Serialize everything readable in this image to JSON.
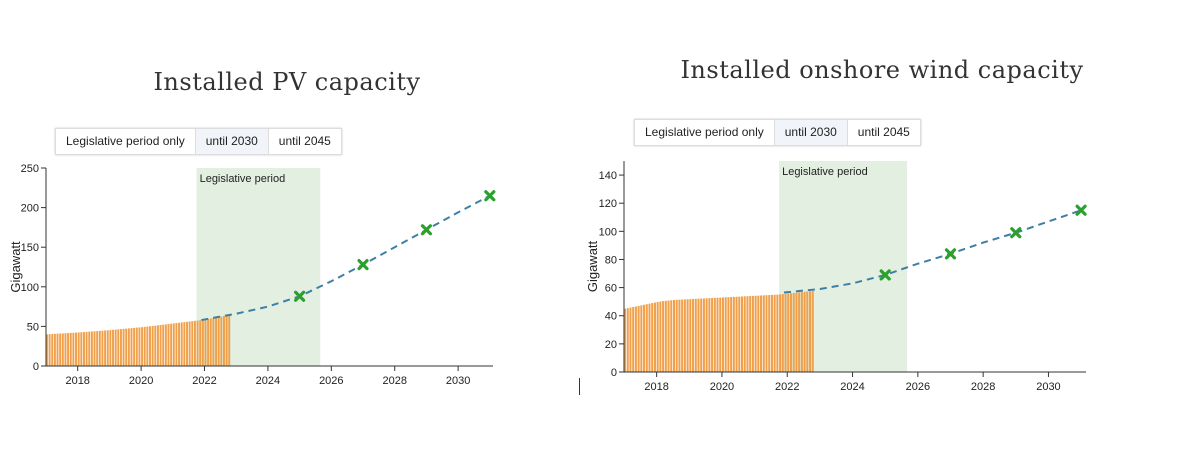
{
  "buttons": [
    "Legislative period only",
    "until 2030",
    "until 2045"
  ],
  "active_button": 1,
  "colors": {
    "bars": "#f0a04a",
    "projection": "#3d7fa6",
    "targets": "#2ca02c",
    "legislative_shade": "#e3f0e1"
  },
  "chart_data": [
    {
      "type": "bar",
      "title": "Installed PV capacity",
      "ylabel": "Gigawatt",
      "xlim": [
        2017,
        2031.1
      ],
      "ylim": [
        0,
        250
      ],
      "xticks": [
        2018,
        2020,
        2022,
        2024,
        2026,
        2028,
        2030
      ],
      "yticks": [
        0,
        50,
        100,
        150,
        200,
        250
      ],
      "shaded_region": {
        "label": "Legislative period",
        "from": 2021.75,
        "to": 2025.65
      },
      "bars": {
        "start": 2017.0,
        "step": "month",
        "values": [
          40.0,
          40.2,
          40.4,
          40.6,
          40.8,
          41.0,
          41.2,
          41.4,
          41.6,
          41.8,
          42.0,
          42.2,
          42.4,
          42.6,
          42.9,
          43.1,
          43.4,
          43.6,
          43.9,
          44.1,
          44.4,
          44.6,
          44.9,
          45.1,
          45.4,
          45.7,
          46.0,
          46.3,
          46.6,
          46.9,
          47.2,
          47.5,
          47.8,
          48.1,
          48.4,
          48.7,
          49.0,
          49.4,
          49.8,
          50.2,
          50.6,
          51.0,
          51.4,
          51.8,
          52.2,
          52.6,
          53.0,
          53.4,
          53.8,
          54.2,
          54.6,
          55.0,
          55.4,
          55.8,
          56.2,
          56.6,
          57.0,
          57.4,
          57.8,
          58.2,
          58.8,
          59.4,
          60.0,
          60.6,
          61.2,
          61.8,
          62.4,
          63.0,
          63.8,
          64.6
        ]
      },
      "projection": [
        [
          2021.9,
          58
        ],
        [
          2023,
          66
        ],
        [
          2024,
          75
        ],
        [
          2025,
          88
        ],
        [
          2026,
          107
        ],
        [
          2027,
          128
        ],
        [
          2028,
          150
        ],
        [
          2029,
          172
        ],
        [
          2030,
          194
        ],
        [
          2031,
          215
        ]
      ],
      "targets": [
        [
          2025,
          88
        ],
        [
          2027,
          128
        ],
        [
          2029,
          172
        ],
        [
          2031,
          215
        ]
      ]
    },
    {
      "type": "bar",
      "title": "Installed onshore wind capacity",
      "ylabel": "Gigawatt",
      "xlim": [
        2017,
        2031.15
      ],
      "ylim": [
        0,
        150
      ],
      "xticks": [
        2018,
        2020,
        2022,
        2024,
        2026,
        2028,
        2030
      ],
      "yticks": [
        0,
        20,
        40,
        60,
        80,
        100,
        120,
        140
      ],
      "shaded_region": {
        "label": "Legislative period",
        "from": 2021.75,
        "to": 2025.67
      },
      "bars": {
        "start": 2017.0,
        "step": "month",
        "values": [
          45.0,
          45.4,
          45.8,
          46.2,
          46.6,
          47.0,
          47.4,
          47.8,
          48.2,
          48.6,
          49.0,
          49.4,
          49.8,
          50.1,
          50.4,
          50.6,
          50.8,
          51.0,
          51.2,
          51.3,
          51.4,
          51.5,
          51.6,
          51.7,
          51.8,
          51.9,
          52.0,
          52.1,
          52.2,
          52.3,
          52.4,
          52.5,
          52.6,
          52.7,
          52.8,
          52.9,
          53.0,
          53.1,
          53.2,
          53.3,
          53.4,
          53.5,
          53.6,
          53.7,
          53.8,
          53.9,
          54.0,
          54.1,
          54.2,
          54.3,
          54.4,
          54.5,
          54.6,
          54.7,
          54.8,
          54.9,
          55.0,
          55.2,
          55.4,
          55.6,
          55.8,
          56.0,
          56.2,
          56.4,
          56.6,
          56.8,
          57.0,
          57.2,
          57.4,
          57.6
        ]
      },
      "projection": [
        [
          2021.9,
          56.5
        ],
        [
          2023,
          59
        ],
        [
          2024,
          63
        ],
        [
          2025,
          69
        ],
        [
          2026,
          77
        ],
        [
          2027,
          84
        ],
        [
          2028,
          92
        ],
        [
          2029,
          99
        ],
        [
          2030,
          107
        ],
        [
          2031,
          115
        ]
      ],
      "targets": [
        [
          2025,
          69
        ],
        [
          2027,
          84
        ],
        [
          2029,
          99
        ],
        [
          2031,
          115
        ]
      ]
    }
  ]
}
